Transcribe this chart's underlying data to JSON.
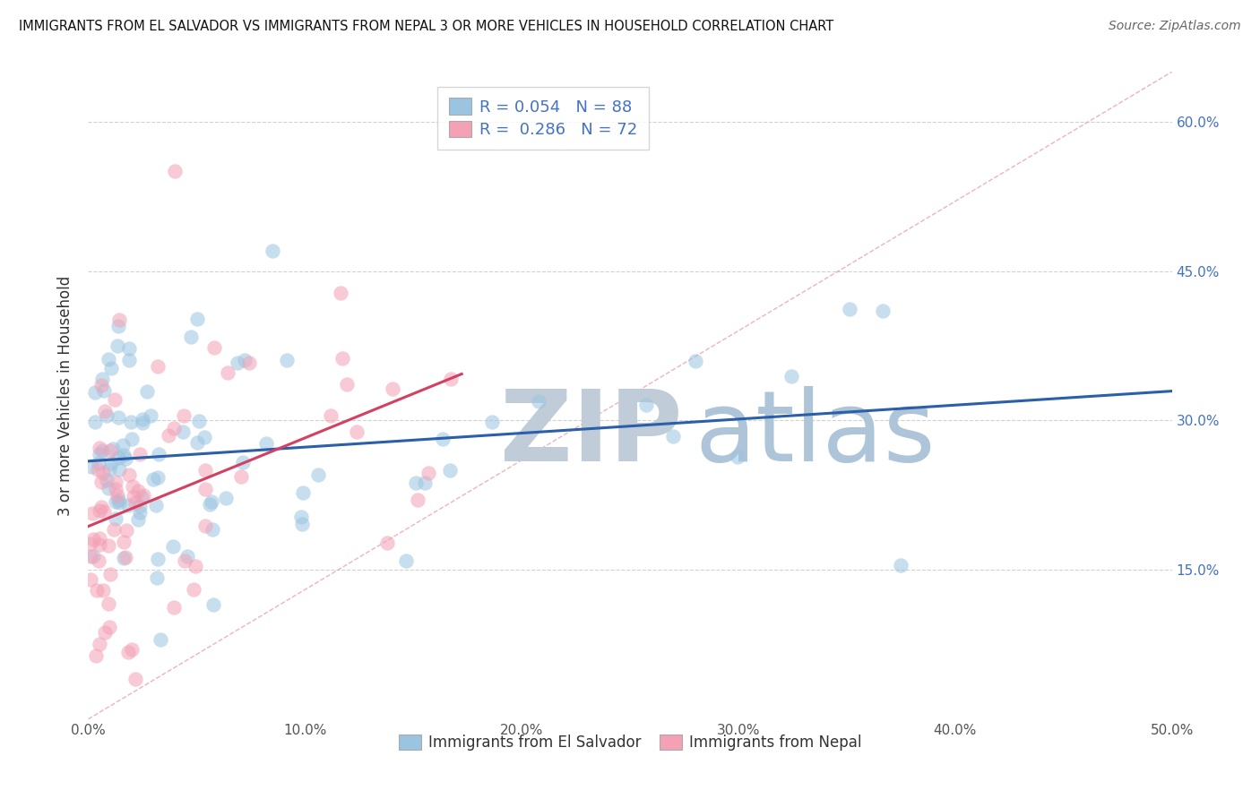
{
  "title": "IMMIGRANTS FROM EL SALVADOR VS IMMIGRANTS FROM NEPAL 3 OR MORE VEHICLES IN HOUSEHOLD CORRELATION CHART",
  "source": "Source: ZipAtlas.com",
  "ylabel": "3 or more Vehicles in Household",
  "xlim": [
    0.0,
    0.5
  ],
  "ylim": [
    0.0,
    0.65
  ],
  "xtick_vals": [
    0.0,
    0.1,
    0.2,
    0.3,
    0.4,
    0.5
  ],
  "xtick_labels": [
    "0.0%",
    "10.0%",
    "20.0%",
    "30.0%",
    "40.0%",
    "50.0%"
  ],
  "ytick_right_vals": [
    0.15,
    0.3,
    0.45,
    0.6
  ],
  "ytick_right_labels": [
    "15.0%",
    "30.0%",
    "45.0%",
    "60.0%"
  ],
  "el_salvador_color": "#9ac4e0",
  "nepal_color": "#f4a0b5",
  "trend_el_salvador_color": "#2b5faa",
  "trend_nepal_color": "#d44060",
  "diagonal_color": "#e8a0b0",
  "background_color": "#ffffff",
  "grid_color": "#cccccc",
  "watermark_zip_color": "#c8d4e0",
  "watermark_atlas_color": "#a8c0d8",
  "r_el_salvador": 0.054,
  "n_el_salvador": 88,
  "r_nepal": 0.286,
  "n_nepal": 72,
  "legend_color": "#4472c4"
}
